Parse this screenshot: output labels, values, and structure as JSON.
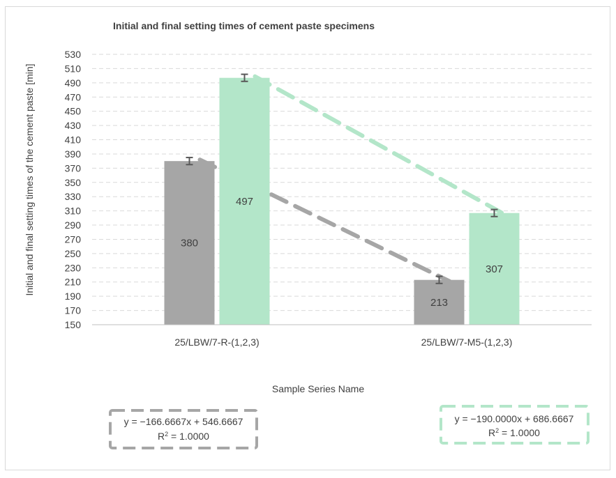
{
  "chart_data": {
    "type": "bar",
    "title": "Initial and final setting times of cement paste specimens",
    "xlabel": "Sample Series Name",
    "ylabel": "Initial and final setting times of the cement paste [min]",
    "ylim": [
      150,
      530
    ],
    "ytick_step": 20,
    "grid": true,
    "categories": [
      "25/LBW/7-R-(1,2,3)",
      "25/LBW/7-M5-(1,2,3)"
    ],
    "series": [
      {
        "color": "#a6a6a6",
        "values": [
          380,
          213
        ],
        "error": [
          5,
          5
        ],
        "data_labels": [
          "380",
          "213"
        ]
      },
      {
        "color": "#b3e6c9",
        "values": [
          497,
          307
        ],
        "error": [
          5,
          5
        ],
        "data_labels": [
          "497",
          "307"
        ]
      }
    ],
    "trendlines": [
      {
        "series_index": 0,
        "color": "#a6a6a6",
        "start": 380,
        "end": 213,
        "equation": "y = −166.6667x + 546.6667",
        "r2_label": "R",
        "r2_value": " = 1.0000"
      },
      {
        "series_index": 1,
        "color": "#b3e6c9",
        "start": 497,
        "end": 307,
        "equation": "y = −190.0000x + 686.6667",
        "r2_label": "R",
        "r2_value": " = 1.0000"
      }
    ]
  }
}
